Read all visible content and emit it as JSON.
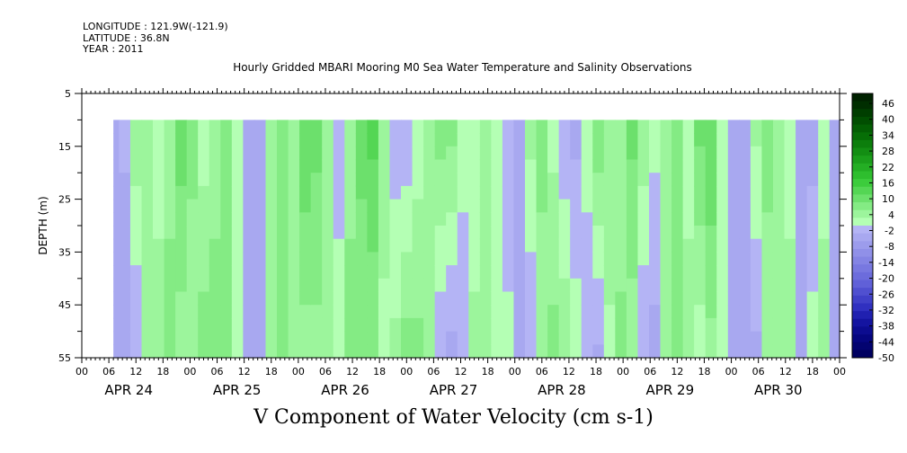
{
  "header": {
    "longitude": "LONGITUDE : 121.9W(-121.9)",
    "latitude": "LATITUDE : 36.8N",
    "year": "YEAR : 2011",
    "title": "Hourly Gridded MBARI Mooring M0 Sea Water Temperature and Salinity Observations"
  },
  "bottom_title": "V Component of Water Velocity (cm s-1)",
  "chart_data": {
    "type": "heatmap",
    "title": "Hourly Gridded MBARI Mooring M0 Sea Water Temperature and Salinity Observations",
    "xlabel": "",
    "ylabel": "DEPTH (m)",
    "variable": "V Component of Water Velocity (cm s-1)",
    "x_hour_ticks": [
      "00",
      "06",
      "12",
      "18",
      "00",
      "06",
      "12",
      "18",
      "00",
      "06",
      "12",
      "18",
      "00",
      "06",
      "12",
      "18",
      "00",
      "06",
      "12",
      "18",
      "00",
      "06",
      "12",
      "18",
      "00",
      "06",
      "12",
      "18",
      "00"
    ],
    "day_labels": [
      "APR 24",
      "APR 25",
      "APR 26",
      "APR 27",
      "APR 28",
      "APR 29",
      "APR 30"
    ],
    "xlim_hours": [
      0,
      168
    ],
    "data_start_hour": 7,
    "y_ticks": [
      5,
      15,
      25,
      35,
      45,
      55
    ],
    "ylim": [
      5,
      55
    ],
    "data_top_depth": 10,
    "colorbar_labels": [
      46,
      40,
      34,
      28,
      22,
      16,
      10,
      4,
      -2,
      -8,
      -14,
      -20,
      -26,
      -32,
      -38,
      -44,
      -50
    ],
    "colorbar_range": [
      -50,
      49
    ],
    "colorbar_step": 3,
    "colors": {
      "positive_bins": [
        "#b4ffb4",
        "#9cf59c",
        "#84eb84",
        "#6ce06c",
        "#54d654",
        "#3ccc3c",
        "#2ebe2e",
        "#24ae24",
        "#1b9e1b",
        "#138e13",
        "#0c7e0c",
        "#066e06",
        "#035e03",
        "#014e01",
        "#003e00",
        "#002e00",
        "#002200"
      ],
      "negative_bins": [
        "#b4b4f5",
        "#a8a8f0",
        "#9c9cec",
        "#9090e8",
        "#8484e4",
        "#7878e0",
        "#6c6cdc",
        "#6060d8",
        "#5050d0",
        "#4040c8",
        "#3030c0",
        "#2020b0",
        "#1414a0",
        "#0c0c90",
        "#060680",
        "#030370",
        "#000060"
      ]
    },
    "profiles": [
      {
        "hour": 7.0,
        "top": -3,
        "bottom": -3
      },
      {
        "hour": 9.5,
        "top": -1,
        "bottom": -5
      },
      {
        "hour": 12.0,
        "top": 6,
        "bottom": -2
      },
      {
        "hour": 14.5,
        "top": 4,
        "bottom": 4
      },
      {
        "hour": 17.0,
        "top": 1,
        "bottom": 7
      },
      {
        "hour": 19.5,
        "top": 6,
        "bottom": 8
      },
      {
        "hour": 22.0,
        "top": 12,
        "bottom": 5
      },
      {
        "hour": 24.5,
        "top": 8,
        "bottom": 5
      },
      {
        "hour": 27.0,
        "top": 2,
        "bottom": 9
      },
      {
        "hour": 29.5,
        "top": 5,
        "bottom": 9
      },
      {
        "hour": 32.0,
        "top": 10,
        "bottom": 7
      },
      {
        "hour": 34.5,
        "top": 4,
        "bottom": 3
      },
      {
        "hour": 37.0,
        "top": -3,
        "bottom": -3
      },
      {
        "hour": 39.5,
        "top": -2,
        "bottom": -4
      },
      {
        "hour": 42.0,
        "top": 7,
        "bottom": 5
      },
      {
        "hour": 44.5,
        "top": 8,
        "bottom": 9
      },
      {
        "hour": 47.0,
        "top": 6,
        "bottom": 7
      },
      {
        "hour": 49.5,
        "top": 13,
        "bottom": 5
      },
      {
        "hour": 52.0,
        "top": 11,
        "bottom": 6
      },
      {
        "hour": 54.5,
        "top": 4,
        "bottom": 7
      },
      {
        "hour": 57.0,
        "top": -1,
        "bottom": 3
      },
      {
        "hour": 59.5,
        "top": 4,
        "bottom": 10
      },
      {
        "hour": 62.0,
        "top": 11,
        "bottom": 8
      },
      {
        "hour": 64.5,
        "top": 14,
        "bottom": 7
      },
      {
        "hour": 67.0,
        "top": 6,
        "bottom": 3
      },
      {
        "hour": 69.5,
        "top": -1,
        "bottom": 5
      },
      {
        "hour": 72.0,
        "top": -2,
        "bottom": 9
      },
      {
        "hour": 74.5,
        "top": 2,
        "bottom": 8
      },
      {
        "hour": 77.0,
        "top": 5,
        "bottom": 4
      },
      {
        "hour": 79.5,
        "top": 9,
        "bottom": -2
      },
      {
        "hour": 82.0,
        "top": 8,
        "bottom": -3
      },
      {
        "hour": 84.5,
        "top": 3,
        "bottom": -2
      },
      {
        "hour": 87.0,
        "top": 1,
        "bottom": 5
      },
      {
        "hour": 89.5,
        "top": 6,
        "bottom": 6
      },
      {
        "hour": 92.0,
        "top": 2,
        "bottom": 4
      },
      {
        "hour": 94.5,
        "top": -2,
        "bottom": 2
      },
      {
        "hour": 97.0,
        "top": -3,
        "bottom": -3
      },
      {
        "hour": 99.5,
        "top": 5,
        "bottom": -2
      },
      {
        "hour": 102.0,
        "top": 9,
        "bottom": 4
      },
      {
        "hour": 104.5,
        "top": 3,
        "bottom": 8
      },
      {
        "hour": 107.0,
        "top": -2,
        "bottom": 7
      },
      {
        "hour": 109.5,
        "top": -3,
        "bottom": 3
      },
      {
        "hour": 112.0,
        "top": 3,
        "bottom": -2
      },
      {
        "hour": 114.5,
        "top": 10,
        "bottom": -3
      },
      {
        "hour": 117.0,
        "top": 7,
        "bottom": 3
      },
      {
        "hour": 119.5,
        "top": 4,
        "bottom": 8
      },
      {
        "hour": 122.0,
        "top": 11,
        "bottom": 5
      },
      {
        "hour": 124.5,
        "top": 6,
        "bottom": -2
      },
      {
        "hour": 127.0,
        "top": 2,
        "bottom": -3
      },
      {
        "hour": 129.5,
        "top": 4,
        "bottom": 4
      },
      {
        "hour": 132.0,
        "top": 7,
        "bottom": 8
      },
      {
        "hour": 134.5,
        "top": 3,
        "bottom": 5
      },
      {
        "hour": 137.0,
        "top": 11,
        "bottom": 2
      },
      {
        "hour": 139.5,
        "top": 13,
        "bottom": 6
      },
      {
        "hour": 142.0,
        "top": 3,
        "bottom": 4
      },
      {
        "hour": 144.5,
        "top": -2,
        "bottom": -3
      },
      {
        "hour": 147.0,
        "top": -3,
        "bottom": -4
      },
      {
        "hour": 149.5,
        "top": 5,
        "bottom": -3
      },
      {
        "hour": 152.0,
        "top": 9,
        "bottom": 4
      },
      {
        "hour": 154.5,
        "top": 4,
        "bottom": 5
      },
      {
        "hour": 157.0,
        "top": 2,
        "bottom": 6
      },
      {
        "hour": 159.5,
        "top": -2,
        "bottom": -2
      },
      {
        "hour": 162.0,
        "top": -4,
        "bottom": 3
      },
      {
        "hour": 164.5,
        "top": 3,
        "bottom": 5
      },
      {
        "hour": 167.0,
        "top": -5,
        "bottom": -2
      }
    ]
  }
}
